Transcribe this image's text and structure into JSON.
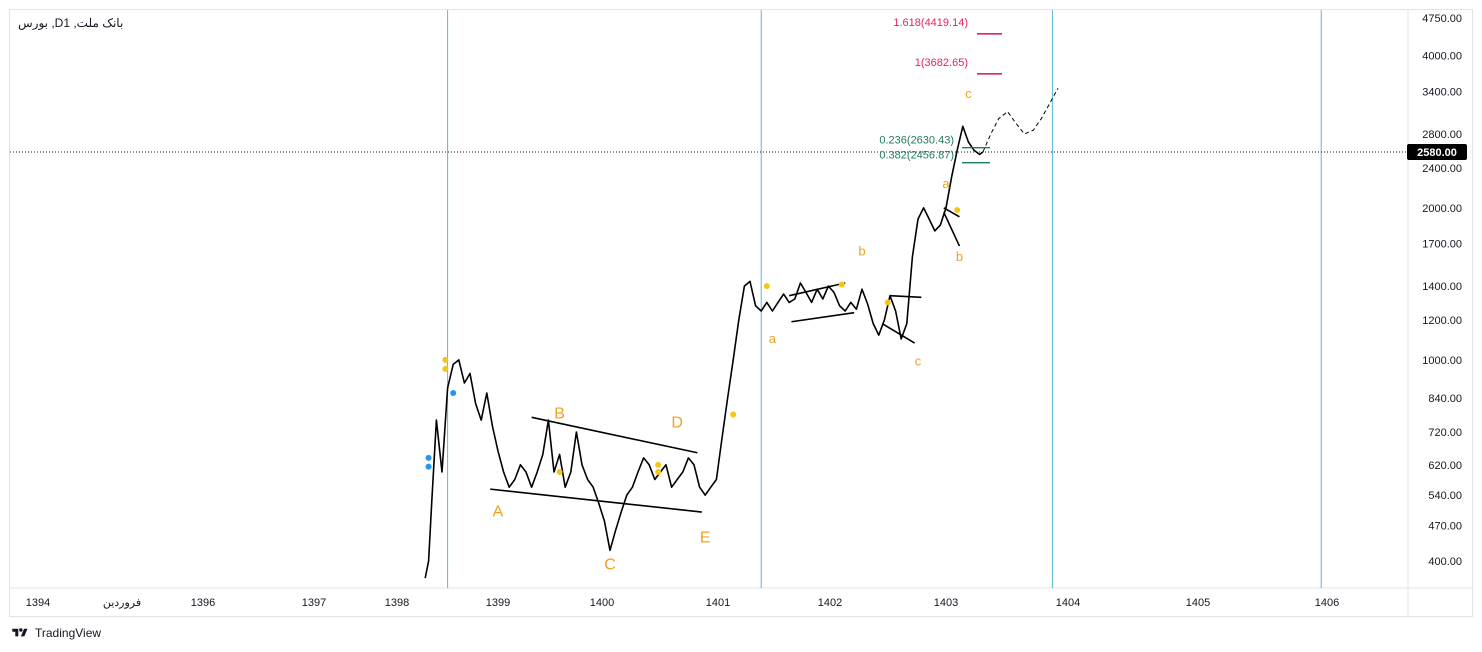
{
  "symbol_title": "بورس ,Dبانک ملت, 1",
  "branding": {
    "name": "TradingView",
    "icon": "tradingview-logo-icon"
  },
  "colors": {
    "price_line": "#000000",
    "vertical_lines": "#5fb8d6",
    "wave_labels": "#f0a020",
    "fib_extension": "#e91e63",
    "fib_retrace": "#1e7e5c",
    "dots_yellow": "#f5c518",
    "dots_blue": "#2196f3",
    "price_tag_bg": "#000000"
  },
  "chart_data": {
    "type": "line",
    "scale": "log",
    "ylim": [
      370,
      4900
    ],
    "y_ticks": [
      "4750.00",
      "4000.00",
      "3400.00",
      "2800.00",
      "2400.00",
      "2000.00",
      "1700.00",
      "1400.00",
      "1200.00",
      "1000.00",
      "840.00",
      "720.00",
      "620.00",
      "540.00",
      "470.00",
      "400.00"
    ],
    "x_ticks": [
      "1394",
      "فروردین",
      "1396",
      "1397",
      "1398",
      "1399",
      "1400",
      "1401",
      "1402",
      "1403",
      "1404",
      "1405",
      "1406"
    ],
    "current_price": "2580.00",
    "series": [
      {
        "x": [
          1398.35,
          1398.38,
          1398.41,
          1398.45,
          1398.5,
          1398.55,
          1398.6,
          1398.65,
          1398.7,
          1398.75,
          1398.8,
          1398.85,
          1398.9,
          1398.95,
          1399.0,
          1399.05,
          1399.1,
          1399.15,
          1399.2,
          1399.25,
          1399.3,
          1399.35,
          1399.4,
          1399.45,
          1399.5,
          1399.55,
          1399.6,
          1399.65,
          1399.7,
          1399.75,
          1399.8,
          1399.85,
          1399.9,
          1399.95,
          1400.0,
          1400.05,
          1400.1,
          1400.15,
          1400.2,
          1400.25,
          1400.3,
          1400.35,
          1400.4,
          1400.45,
          1400.5,
          1400.55,
          1400.6,
          1400.65,
          1400.7,
          1400.75,
          1400.8,
          1400.85,
          1400.9,
          1400.95,
          1401.0,
          1401.05,
          1401.1,
          1401.15,
          1401.2,
          1401.25,
          1401.3,
          1401.35,
          1401.4,
          1401.45,
          1401.5,
          1401.55,
          1401.6,
          1401.65,
          1401.7,
          1401.75,
          1401.8,
          1401.85,
          1401.9,
          1401.95,
          1402.0,
          1402.05,
          1402.1,
          1402.15,
          1402.2,
          1402.25,
          1402.3,
          1402.35,
          1402.4,
          1402.45,
          1402.5,
          1402.55,
          1402.6,
          1402.65,
          1402.7,
          1402.75,
          1402.8,
          1402.85,
          1402.9,
          1402.95,
          1403.0,
          1403.05,
          1403.1,
          1403.15,
          1403.2,
          1403.25,
          1403.3,
          1403.33
        ],
        "values": [
          370,
          400,
          530,
          760,
          600,
          880,
          980,
          1000,
          900,
          940,
          820,
          760,
          860,
          740,
          660,
          600,
          560,
          580,
          620,
          600,
          560,
          600,
          650,
          760,
          600,
          650,
          560,
          600,
          720,
          620,
          580,
          560,
          520,
          480,
          420,
          460,
          500,
          540,
          560,
          600,
          640,
          620,
          580,
          600,
          620,
          560,
          580,
          600,
          640,
          620,
          560,
          540,
          560,
          580,
          700,
          840,
          1000,
          1200,
          1400,
          1430,
          1280,
          1250,
          1300,
          1250,
          1300,
          1350,
          1300,
          1320,
          1420,
          1360,
          1300,
          1380,
          1320,
          1400,
          1360,
          1280,
          1250,
          1300,
          1260,
          1380,
          1290,
          1180,
          1120,
          1200,
          1340,
          1250,
          1100,
          1180,
          1600,
          1900,
          2000,
          1900,
          1800,
          1850,
          2000,
          2300,
          2600,
          2900,
          2700,
          2600,
          2550,
          2580
        ],
        "projection_x": [
          1403.33,
          1403.4,
          1403.47,
          1403.55,
          1403.62,
          1403.7,
          1403.78,
          1403.85,
          1403.92,
          1404.0
        ],
        "projection_values": [
          2580,
          2800,
          3000,
          3100,
          2950,
          2800,
          2850,
          3000,
          3200,
          3450
        ]
      }
    ],
    "vertical_markers": [
      1398.55,
      1401.35,
      1403.95,
      1406.35
    ],
    "annotations": {
      "wave_labels": [
        {
          "text": "A",
          "x": 1399.0,
          "y": 490,
          "size": "big"
        },
        {
          "text": "B",
          "x": 1399.55,
          "y": 765,
          "size": "big"
        },
        {
          "text": "C",
          "x": 1400.0,
          "y": 385,
          "size": "big"
        },
        {
          "text": "D",
          "x": 1400.6,
          "y": 735,
          "size": "big"
        },
        {
          "text": "E",
          "x": 1400.85,
          "y": 435,
          "size": "big"
        },
        {
          "text": "a",
          "x": 1401.45,
          "y": 1080,
          "size": "small"
        },
        {
          "text": "b",
          "x": 1402.25,
          "y": 1610,
          "size": "small"
        },
        {
          "text": "c",
          "x": 1402.75,
          "y": 975,
          "size": "small"
        },
        {
          "text": "a",
          "x": 1403.0,
          "y": 2190,
          "size": "small"
        },
        {
          "text": "b",
          "x": 1403.12,
          "y": 1570,
          "size": "small"
        },
        {
          "text": "c",
          "x": 1403.2,
          "y": 3300,
          "size": "small"
        }
      ],
      "fib_extensions": [
        {
          "label": "1.618(4419.14)",
          "value": 4419.14
        },
        {
          "label": "1(3682.65)",
          "value": 3682.65
        }
      ],
      "fib_retracements": [
        {
          "label": "0.236(2630.43)",
          "value": 2630.43
        },
        {
          "label": "0.382(2456.87)",
          "value": 2456.87
        }
      ]
    }
  }
}
